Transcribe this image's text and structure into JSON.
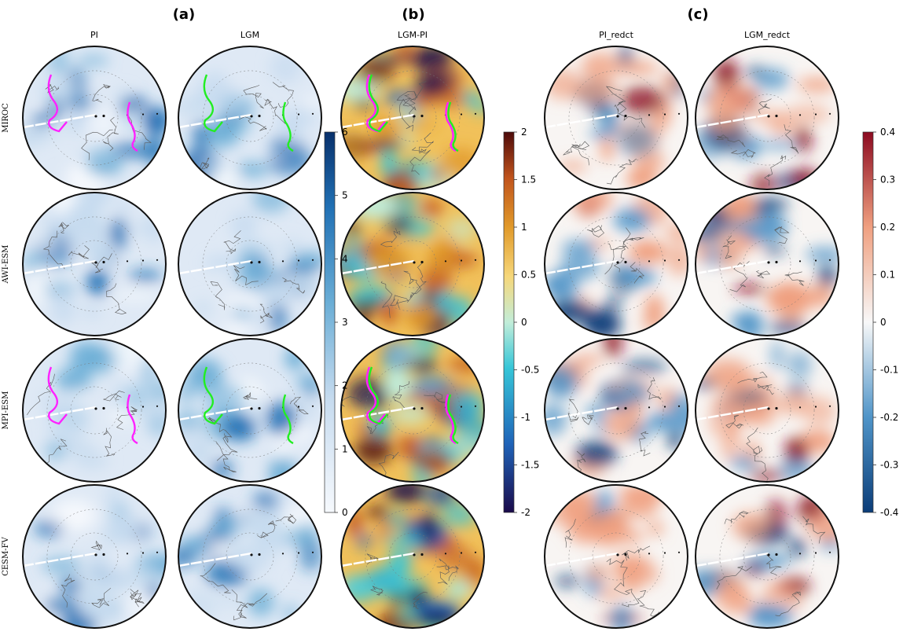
{
  "panels": [
    {
      "letter": "(a)",
      "columns": [
        "PI",
        "LGM"
      ]
    },
    {
      "letter": "(b)",
      "columns": [
        "LGM-PI"
      ]
    },
    {
      "letter": "(c)",
      "columns": [
        "PI_redct",
        "LGM_redct"
      ]
    }
  ],
  "rows": [
    "MIROC",
    "AWI-ESM",
    "MPI-ESM",
    "CESM-FV"
  ],
  "colorbars": [
    {
      "id": "a",
      "ticks": [
        "0",
        "1",
        "2",
        "3",
        "4",
        "5",
        "6"
      ],
      "range": [
        0,
        6
      ],
      "colormap": "white-to-blue"
    },
    {
      "id": "b",
      "ticks": [
        "-2",
        "-1.5",
        "-1",
        "-0.5",
        "0",
        "0.5",
        "1",
        "1.5",
        "2"
      ],
      "range": [
        -2,
        2
      ],
      "colormap": "navy-blue-cyan-yellow-orange-darkred"
    },
    {
      "id": "c",
      "ticks": [
        "-0.4",
        "-0.3",
        "-0.2",
        "-0.1",
        "0",
        "0.1",
        "0.2",
        "0.3",
        "0.4"
      ],
      "range": [
        -0.4,
        0.4
      ],
      "colormap": "blue-white-red"
    }
  ],
  "chart_data": {
    "type": "heatmap",
    "projection": "north polar stereographic",
    "map_grid": {
      "columns": 5,
      "rows": 4
    },
    "overlays": {
      "pi_contour_color": "#ff22ff",
      "lgm_contour_color": "#22ee22"
    },
    "colors": {
      "blue_scale": [
        "#f6f9fd",
        "#c6dbef",
        "#6baed6",
        "#2171b5",
        "#08306b"
      ],
      "diverging_b": [
        "#1a0a4a",
        "#1f63b8",
        "#36c6d8",
        "#c2edd9",
        "#f6d77a",
        "#e19a2a",
        "#c0531c",
        "#4d0a0a"
      ],
      "diverging_c": [
        "#0b3d78",
        "#4f94c8",
        "#f8f8f8",
        "#f0a080",
        "#8c0a20"
      ]
    }
  }
}
